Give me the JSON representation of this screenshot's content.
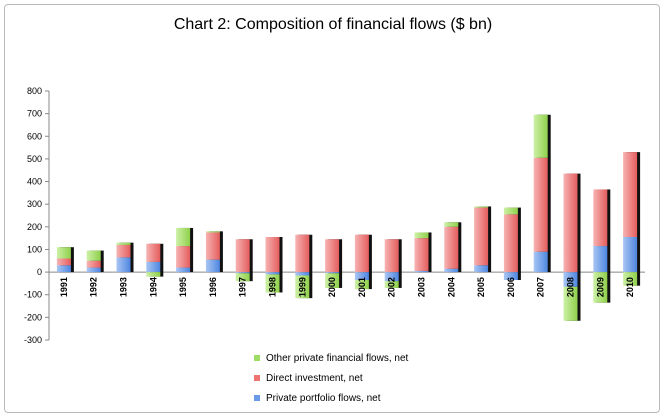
{
  "chart_data": {
    "type": "bar",
    "stacked": true,
    "title": "Chart 2: Composition of financial flows ($ bn)",
    "xlabel": "",
    "ylabel": "",
    "ylim": [
      -300,
      800
    ],
    "yticks": [
      -300,
      -200,
      -100,
      0,
      100,
      200,
      300,
      400,
      500,
      600,
      700,
      800
    ],
    "grid": false,
    "legend_position": "bottom",
    "categories": [
      "1991",
      "1992",
      "1993",
      "1994",
      "1995",
      "1996",
      "1997",
      "1998",
      "1999",
      "2000",
      "2001",
      "2002",
      "2003",
      "2004",
      "2005",
      "2006",
      "2007",
      "2008",
      "2009",
      "2010"
    ],
    "series": [
      {
        "name": "Private portfolio flows, net",
        "color": "#6a9be8",
        "values": [
          30,
          20,
          65,
          45,
          20,
          55,
          -5,
          -10,
          -15,
          -5,
          -35,
          -40,
          5,
          15,
          30,
          -35,
          90,
          -65,
          115,
          155
        ]
      },
      {
        "name": "Direct investment, net",
        "color": "#ee7474",
        "values": [
          30,
          30,
          55,
          80,
          95,
          120,
          145,
          155,
          165,
          145,
          165,
          145,
          145,
          185,
          255,
          255,
          415,
          435,
          250,
          375
        ]
      },
      {
        "name": "Other private financial flows, net",
        "color": "#9fdc63",
        "values": [
          50,
          45,
          10,
          -20,
          80,
          5,
          -35,
          -80,
          -100,
          -65,
          -40,
          -30,
          25,
          20,
          5,
          30,
          190,
          -150,
          -135,
          -60
        ]
      }
    ],
    "legend_order": [
      "Other private financial flows, net",
      "Direct investment, net",
      "Private portfolio flows, net"
    ]
  }
}
